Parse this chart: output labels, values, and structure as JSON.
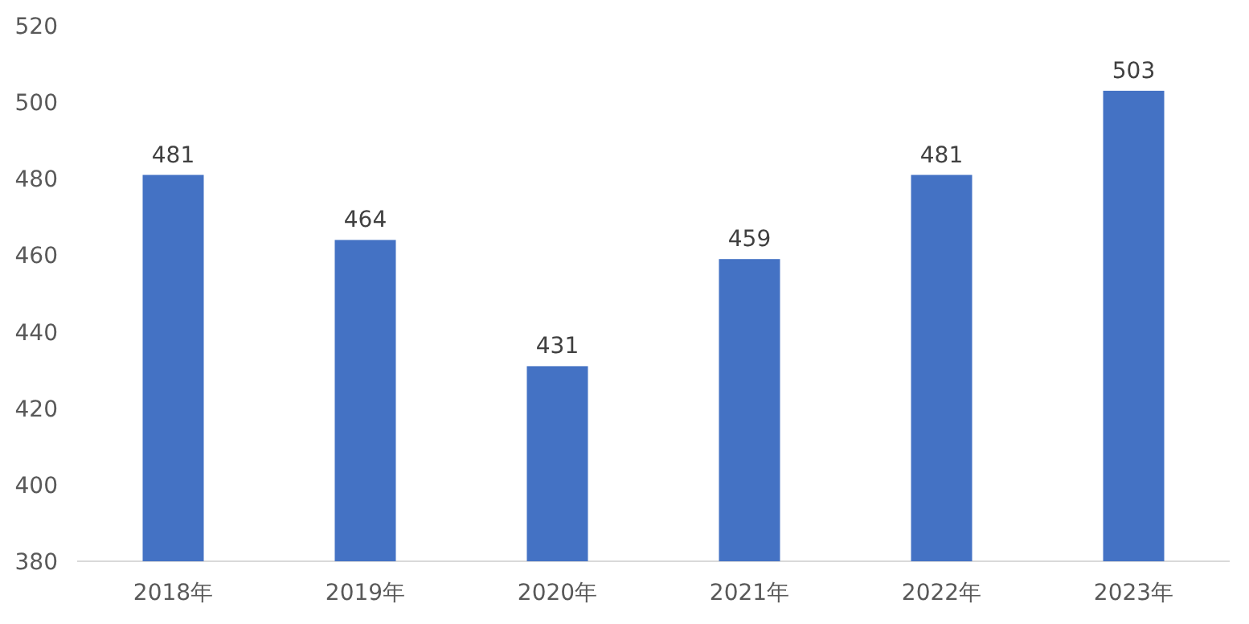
{
  "chart_data": {
    "type": "bar",
    "categories": [
      "2018年",
      "2019年",
      "2020年",
      "2021年",
      "2022年",
      "2023年"
    ],
    "values": [
      481,
      464,
      431,
      459,
      481,
      503
    ],
    "color": "#4472c4",
    "ylim": [
      380,
      520
    ],
    "yticks": [
      380,
      400,
      420,
      440,
      460,
      480,
      500,
      520
    ],
    "data_labels": true
  }
}
